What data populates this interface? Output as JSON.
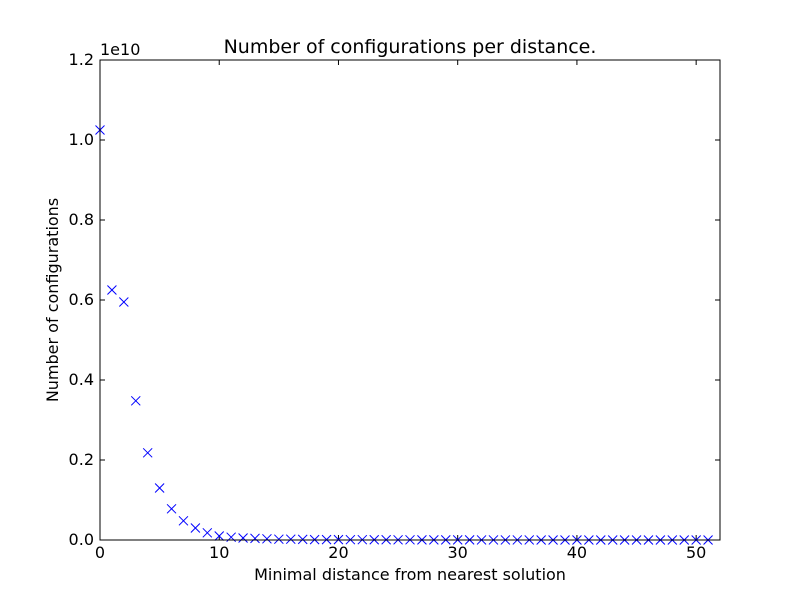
{
  "chart_data": {
    "type": "scatter",
    "title": "Number of configurations per distance.",
    "xlabel": "Minimal distance from nearest solution",
    "ylabel": "Number of configurations",
    "y_offset_label": "1e10",
    "xlim": [
      0,
      52
    ],
    "ylim": [
      0,
      1.2
    ],
    "x_ticks": [
      0,
      10,
      20,
      30,
      40,
      50
    ],
    "x_tick_labels": [
      "0",
      "10",
      "20",
      "30",
      "40",
      "50"
    ],
    "y_ticks": [
      0.0,
      0.2,
      0.4,
      0.6,
      0.8,
      1.0,
      1.2
    ],
    "y_tick_labels": [
      "0.0",
      "0.2",
      "0.4",
      "0.6",
      "0.8",
      "1.0",
      "1.2"
    ],
    "grid": false,
    "marker": "x",
    "marker_color": "#0000ff",
    "series": [
      {
        "x": [
          0,
          1,
          2,
          3,
          4,
          5,
          6,
          7,
          8,
          9,
          10,
          11,
          12,
          13,
          14,
          15,
          16,
          17,
          18,
          19,
          20,
          21,
          22,
          23,
          24,
          25,
          26,
          27,
          28,
          29,
          30,
          31,
          32,
          33,
          34,
          35,
          36,
          37,
          38,
          39,
          40,
          41,
          42,
          43,
          44,
          45,
          46,
          47,
          48,
          49,
          50,
          51
        ],
        "y": [
          1.025,
          0.625,
          0.595,
          0.348,
          0.218,
          0.13,
          0.078,
          0.048,
          0.03,
          0.018,
          0.01,
          0.007,
          0.005,
          0.004,
          0.003,
          0.002,
          0.002,
          0.0015,
          0.001,
          0.001,
          0.001,
          0.0008,
          0.0008,
          0.0006,
          0.0006,
          0.0005,
          0.0005,
          0.0004,
          0.0004,
          0.0003,
          0.0003,
          0.0003,
          0.0002,
          0.0002,
          0.0002,
          0.0002,
          0.0002,
          0.0001,
          0.0001,
          0.0001,
          0.0001,
          0.0001,
          0.0001,
          0.0001,
          0.0001,
          0.0001,
          0.0001,
          0.0001,
          0.0001,
          0.0001,
          0.0001,
          0.0001
        ]
      }
    ]
  }
}
